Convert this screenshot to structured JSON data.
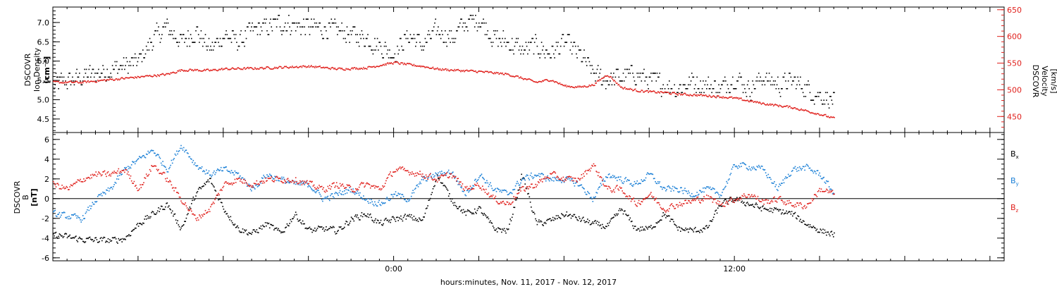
{
  "xlabel": "hours:minutes, Nov. 11, 2017 - Nov. 12, 2017",
  "x_tick_labels": [
    "0:00",
    "12:00"
  ],
  "colors": {
    "black": "#000000",
    "red": "#e0201c",
    "blue": "#1a7fd6"
  },
  "chart_data": [
    {
      "type": "scatter",
      "panel": "top",
      "x_unit": "hours relative to Nov. 11, 2017 0:00",
      "xlim": [
        -12,
        21.5
      ],
      "left_axis": {
        "label_lines": [
          "DSCOVR",
          "Ion Density",
          "[cm⁻³]"
        ],
        "ylim": [
          4.15,
          7.4
        ],
        "ticks": [
          4.5,
          5.0,
          5.5,
          6.0,
          6.5,
          7.0
        ],
        "tick_labels": [
          "4.5",
          "5.0",
          "5.5",
          "6.0",
          "6.5",
          "7.0"
        ],
        "color": "#000000"
      },
      "right_axis": {
        "label_lines": [
          "DSCOVR",
          "Velocity",
          "[km/s]"
        ],
        "ylim": [
          420,
          655
        ],
        "ticks": [
          450,
          500,
          550,
          600,
          650
        ],
        "tick_labels": [
          "450",
          "500",
          "550",
          "600",
          "650"
        ],
        "color": "#e0201c"
      },
      "series": [
        {
          "color": "#000000",
          "axis": "left",
          "x": [
            -12,
            -11,
            -10,
            -9,
            -8.5,
            -8,
            -7.5,
            -7,
            -6.5,
            -6,
            -5.5,
            -5,
            -4,
            -3,
            -2,
            -1,
            0,
            0.5,
            1,
            1.5,
            2,
            2.5,
            3,
            3.5,
            4,
            4.5,
            5,
            5.5,
            6,
            6.5,
            7,
            7.5,
            8,
            8.5,
            9,
            9.5,
            10,
            10.5,
            11,
            11.5,
            12,
            12.5,
            13,
            13.5,
            14,
            14.5,
            15,
            15.5
          ],
          "y": [
            5.4,
            5.6,
            5.8,
            6.0,
            6.6,
            6.9,
            6.5,
            6.8,
            6.3,
            6.7,
            6.5,
            6.8,
            7.0,
            6.9,
            6.8,
            6.6,
            6.2,
            6.7,
            6.4,
            6.8,
            6.6,
            7.0,
            7.1,
            6.6,
            6.5,
            6.3,
            6.4,
            6.2,
            6.5,
            6.2,
            5.7,
            5.5,
            5.6,
            5.7,
            5.5,
            5.4,
            5.3,
            5.5,
            5.4,
            5.3,
            5.6,
            5.3,
            5.6,
            5.4,
            5.5,
            5.3,
            5.1,
            5.0
          ]
        },
        {
          "color": "#e0201c",
          "axis": "right",
          "x": [
            -12,
            -11,
            -10,
            -9,
            -8,
            -7.5,
            -7,
            -6.5,
            -6,
            -5,
            -4,
            -3,
            -2,
            -1,
            0,
            0.5,
            1,
            1.5,
            2,
            3,
            4,
            5,
            5.5,
            6,
            6.5,
            7,
            7.5,
            8,
            8.5,
            9,
            9.5,
            10,
            11,
            11.5,
            12,
            12.5,
            13,
            14,
            15,
            15.5
          ],
          "y": [
            515,
            515,
            520,
            525,
            530,
            538,
            538,
            537,
            540,
            541,
            543,
            545,
            540,
            542,
            552,
            548,
            545,
            540,
            538,
            535,
            530,
            515,
            520,
            508,
            506,
            510,
            530,
            505,
            500,
            497,
            496,
            493,
            490,
            488,
            485,
            480,
            475,
            468,
            455,
            447
          ]
        }
      ]
    },
    {
      "type": "scatter",
      "panel": "bottom",
      "x_unit": "hours relative to Nov. 11, 2017 0:00",
      "xlim": [
        -12,
        21.5
      ],
      "ylim": [
        -6.3,
        6.7
      ],
      "ticks": [
        -6,
        -4,
        -2,
        0,
        2,
        4,
        6
      ],
      "tick_labels": [
        "-6",
        "-4",
        "-2",
        "0",
        "2",
        "4",
        "6"
      ],
      "ylabel_lines": [
        "DSCOVR",
        "B",
        "[nT]"
      ],
      "zero_line": true,
      "series": [
        {
          "name": "Bx",
          "name_base": "B",
          "name_sub": "x",
          "color": "#000000",
          "x": [
            -12,
            -11,
            -10,
            -9.5,
            -9,
            -8.5,
            -8,
            -7.5,
            -7,
            -6.5,
            -6,
            -5.5,
            -5,
            -4.5,
            -4,
            -3.5,
            -3,
            -2.5,
            -2,
            -1.5,
            -1,
            -0.5,
            0,
            0.5,
            1,
            1.5,
            2,
            2.5,
            3,
            3.5,
            4,
            4.5,
            5,
            5.5,
            6,
            6.5,
            7,
            7.5,
            8,
            8.5,
            9,
            9.5,
            10,
            10.5,
            11,
            11.5,
            12,
            12.5,
            13,
            13.5,
            14,
            14.5,
            15,
            15.5
          ],
          "y": [
            -3.6,
            -4.1,
            -4.2,
            -4.0,
            -2.5,
            -1.5,
            -0.5,
            -3.0,
            0.5,
            2.0,
            -1.0,
            -3.0,
            -3.5,
            -2.5,
            -3.5,
            -1.5,
            -3.2,
            -3.0,
            -3.2,
            -2.0,
            -1.5,
            -2.5,
            -2.0,
            -1.8,
            -2.2,
            2.5,
            0.0,
            -1.5,
            -1.0,
            -3.0,
            -3.2,
            2.5,
            -2.5,
            -2.2,
            -1.5,
            -2.0,
            -2.5,
            -2.8,
            -1.0,
            -3.0,
            -3.0,
            -1.5,
            -3.0,
            -3.2,
            -3.0,
            -0.5,
            0.0,
            -0.5,
            -1.0,
            -1.2,
            -1.5,
            -2.5,
            -3.2,
            -3.6
          ]
        },
        {
          "name": "By",
          "name_base": "B",
          "name_sub": "y",
          "color": "#1a7fd6",
          "x": [
            -12,
            -11,
            -10.5,
            -10,
            -9.5,
            -9,
            -8.5,
            -8,
            -7.5,
            -7,
            -6.5,
            -6,
            -5.5,
            -5,
            -4.5,
            -4,
            -3.5,
            -3,
            -2.5,
            -2,
            -1.5,
            -1,
            -0.5,
            0,
            0.5,
            1,
            1.5,
            2,
            2.5,
            3,
            3.5,
            4,
            4.5,
            5,
            5.5,
            6,
            6.5,
            7,
            7.5,
            8,
            8.5,
            9,
            9.5,
            10,
            10.5,
            11,
            11.5,
            12,
            12.5,
            13,
            13.5,
            14,
            14.5,
            15,
            15.5
          ],
          "y": [
            -1.5,
            -2.0,
            0.0,
            1.0,
            3.0,
            4.0,
            5.0,
            3.0,
            5.5,
            3.5,
            2.5,
            3.0,
            2.5,
            1.0,
            2.5,
            2.0,
            1.5,
            1.5,
            0.0,
            0.5,
            1.0,
            0.0,
            -0.5,
            0.5,
            0.0,
            2.0,
            2.5,
            2.8,
            0.5,
            2.5,
            1.0,
            0.5,
            2.0,
            2.5,
            2.0,
            2.0,
            1.5,
            0.0,
            2.5,
            2.0,
            1.5,
            2.5,
            1.0,
            1.0,
            0.5,
            1.0,
            0.5,
            3.5,
            3.3,
            3.0,
            1.0,
            3.0,
            3.2,
            2.5,
            0.5
          ]
        },
        {
          "name": "Bz",
          "name_base": "B",
          "name_sub": "z",
          "color": "#e0201c",
          "x": [
            -12,
            -11.5,
            -11,
            -10.5,
            -10,
            -9.5,
            -9,
            -8.5,
            -8,
            -7.5,
            -7,
            -6.5,
            -6,
            -5.5,
            -5,
            -4.5,
            -4,
            -3.5,
            -3,
            -2.5,
            -2,
            -1.5,
            -1,
            -0.5,
            0,
            0.5,
            1,
            1.5,
            2,
            2.5,
            3,
            3.5,
            4,
            4.5,
            5,
            5.5,
            6,
            6.5,
            7,
            7.5,
            8,
            8.5,
            9,
            9.5,
            10,
            10.5,
            11,
            11.5,
            12,
            12.5,
            13,
            13.5,
            14,
            14.5,
            15,
            15.5
          ],
          "y": [
            1.5,
            1.0,
            2.0,
            2.5,
            2.5,
            3.0,
            1.0,
            3.5,
            2.0,
            0.0,
            -2.0,
            -1.0,
            1.5,
            2.0,
            1.5,
            2.0,
            2.0,
            2.0,
            1.5,
            1.0,
            1.5,
            1.0,
            1.5,
            1.0,
            3.0,
            2.8,
            2.5,
            2.0,
            2.5,
            1.0,
            1.5,
            0.0,
            -0.5,
            1.0,
            1.5,
            2.5,
            2.0,
            2.0,
            3.5,
            1.0,
            1.0,
            -0.5,
            0.5,
            -1.0,
            -0.5,
            -0.2,
            0.2,
            -0.5,
            0.0,
            0.5,
            -0.3,
            0.0,
            -0.5,
            -0.7,
            1.0,
            0.5
          ]
        }
      ]
    }
  ]
}
